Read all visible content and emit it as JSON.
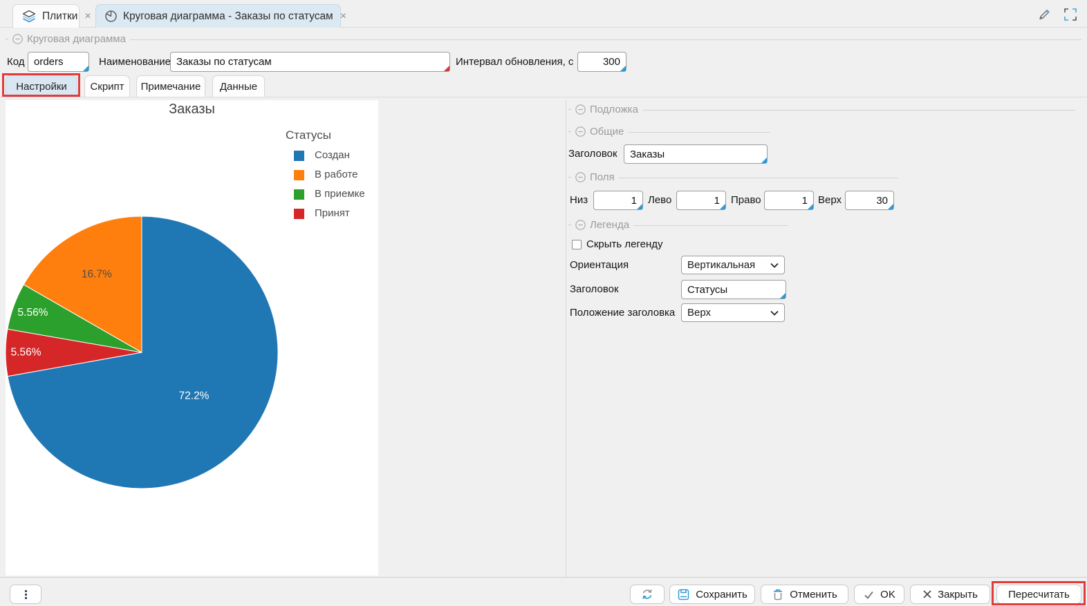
{
  "window": {
    "tabs": [
      {
        "label": "Плитки",
        "close": "×"
      },
      {
        "label": "Круговая диаграмма - Заказы по статусам",
        "close": "×",
        "active": true
      }
    ]
  },
  "editor": {
    "group_title": "Круговая диаграмма",
    "fields": {
      "code": {
        "label": "Код",
        "value": "orders"
      },
      "name": {
        "label": "Наименование",
        "value": "Заказы по статусам"
      },
      "refresh_interval": {
        "label": "Интервал обновления, с",
        "value": "300"
      }
    },
    "tabs": [
      {
        "label": "Настройки",
        "active": true,
        "highlighted": true
      },
      {
        "label": "Скрипт"
      },
      {
        "label": "Примечание"
      },
      {
        "label": "Данные"
      }
    ]
  },
  "chart_data": {
    "type": "pie",
    "title": "Заказы",
    "legend": {
      "title": "Статусы",
      "position": "right",
      "orientation": "vertical"
    },
    "slices": [
      {
        "name": "Создан",
        "percent": 72.2,
        "label": "72.2%",
        "color": "#1f77b4",
        "label_color": "#ffffff",
        "label_radius": 0.5
      },
      {
        "name": "В работе",
        "percent": 16.7,
        "label": "16.7%",
        "color": "#ff7f0e",
        "label_color": "#4d4d4d",
        "label_radius": 0.66
      },
      {
        "name": "В приемке",
        "percent": 5.56,
        "label": "5.56%",
        "color": "#2ca02c",
        "label_color": "#ffffff",
        "label_radius": 0.85
      },
      {
        "name": "Принят",
        "percent": 5.56,
        "label": "5.56%",
        "color": "#d62728",
        "label_color": "#ffffff",
        "label_radius": 0.85
      }
    ],
    "draw_order_clockwise_from_top": [
      0,
      3,
      2,
      1
    ],
    "start_angle": "top"
  },
  "settings_panel": {
    "backdrop": {
      "title": "Подложка"
    },
    "general": {
      "title": "Общие",
      "header": {
        "label": "Заголовок",
        "value": "Заказы"
      }
    },
    "margins": {
      "title": "Поля",
      "bottom": {
        "label": "Низ",
        "value": "1"
      },
      "left": {
        "label": "Лево",
        "value": "1"
      },
      "right": {
        "label": "Право",
        "value": "1"
      },
      "top": {
        "label": "Верх",
        "value": "30"
      }
    },
    "legend": {
      "title": "Легенда",
      "hide_legend": {
        "label": "Скрыть легенду",
        "checked": false
      },
      "orientation": {
        "label": "Ориентация",
        "value": "Вертикальная"
      },
      "header": {
        "label": "Заголовок",
        "value": "Статусы"
      },
      "header_position": {
        "label": "Положение заголовка",
        "value": "Верх"
      }
    }
  },
  "footer": {
    "save": {
      "label": "Сохранить"
    },
    "cancel": {
      "label": "Отменить"
    },
    "ok": {
      "label": "OK"
    },
    "close": {
      "label": "Закрыть"
    },
    "recalculate": {
      "label": "Пересчитать",
      "highlighted": true
    }
  },
  "colors": {
    "highlight_red": "#e23b3b",
    "active_tab_bg": "#dbe9f3",
    "corner_blue": "#2f99d4",
    "corner_red": "#d03b3b",
    "icon_blue": "#2e9ad3"
  }
}
